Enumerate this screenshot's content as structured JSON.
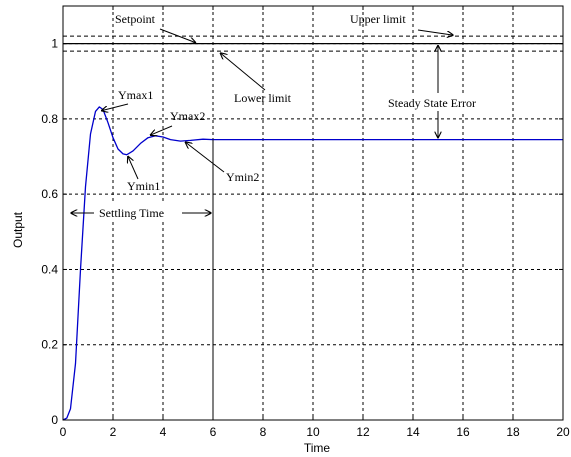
{
  "chart_data": {
    "type": "line",
    "xlabel": "Time",
    "ylabel": "Output",
    "xlim": [
      0,
      20
    ],
    "ylim": [
      0,
      1.1
    ],
    "xticks": [
      "0",
      "2",
      "4",
      "6",
      "8",
      "10",
      "12",
      "14",
      "16",
      "18",
      "20"
    ],
    "yticks": [
      "0",
      "0.2",
      "0.4",
      "0.6",
      "0.8",
      "1"
    ],
    "grid": true,
    "series": [
      {
        "color": "#0000cc",
        "points": [
          [
            0,
            0
          ],
          [
            0.15,
            0.005
          ],
          [
            0.3,
            0.03
          ],
          [
            0.5,
            0.15
          ],
          [
            0.7,
            0.4
          ],
          [
            0.9,
            0.62
          ],
          [
            1.1,
            0.76
          ],
          [
            1.3,
            0.82
          ],
          [
            1.45,
            0.832
          ],
          [
            1.6,
            0.825
          ],
          [
            1.8,
            0.79
          ],
          [
            2.0,
            0.75
          ],
          [
            2.2,
            0.72
          ],
          [
            2.4,
            0.707
          ],
          [
            2.55,
            0.705
          ],
          [
            2.8,
            0.715
          ],
          [
            3.1,
            0.735
          ],
          [
            3.4,
            0.75
          ],
          [
            3.7,
            0.755
          ],
          [
            4.0,
            0.752
          ],
          [
            4.3,
            0.745
          ],
          [
            4.7,
            0.741
          ],
          [
            5.1,
            0.743
          ],
          [
            5.6,
            0.746
          ],
          [
            6.0,
            0.745
          ],
          [
            7,
            0.745
          ],
          [
            10,
            0.745
          ],
          [
            15,
            0.745
          ],
          [
            20,
            0.745
          ]
        ]
      }
    ],
    "setpoint": 1.0,
    "upper_limit": 1.02,
    "lower_limit": 0.98,
    "settling_time": 6,
    "steady_state_error_x": 15,
    "final_value": 0.745,
    "annotations": {
      "setpoint": "Setpoint",
      "upper_limit": "Upper limit",
      "lower_limit": "Lower limit",
      "steady_state_error": "Steady State Error",
      "settling_time": "Settling Time",
      "ymax1": "Ymax1",
      "ymax2": "Ymax2",
      "ymin1": "Ymin1",
      "ymin2": "Ymin2"
    }
  }
}
